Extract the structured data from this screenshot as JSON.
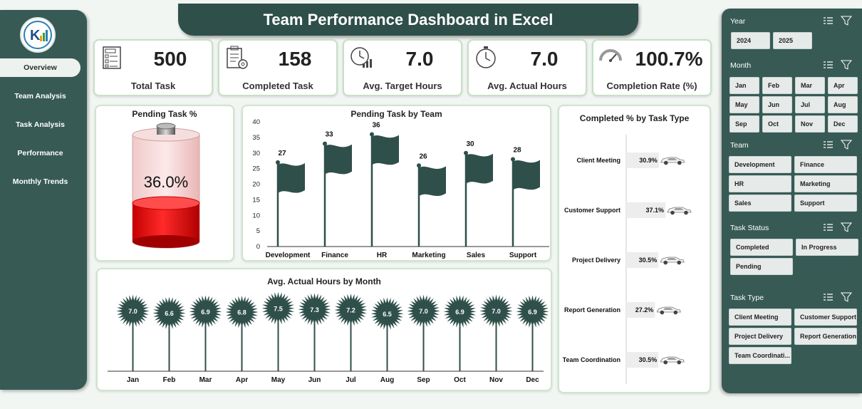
{
  "title": "Team Performance Dashboard in Excel",
  "logo": {
    "text": "K"
  },
  "nav": [
    {
      "label": "Overview",
      "active": true
    },
    {
      "label": "Team Analysis"
    },
    {
      "label": "Task  Analysis"
    },
    {
      "label": "Performance"
    },
    {
      "label": "Monthly Trends"
    }
  ],
  "kpis": [
    {
      "value": "500",
      "label": "Total Task",
      "icon": "task-list-icon"
    },
    {
      "value": "158",
      "label": "Completed Task",
      "icon": "clipboard-gear-icon"
    },
    {
      "value": "7.0",
      "label": "Avg. Target Hours",
      "icon": "clock-bars-icon"
    },
    {
      "value": "7.0",
      "label": "Avg. Actual Hours",
      "icon": "stopwatch-icon"
    },
    {
      "value": "100.7%",
      "label": "Completion Rate (%)",
      "icon": "gauge-icon"
    }
  ],
  "pending_panel": {
    "title": "Pending Task %",
    "value": "36.0%"
  },
  "team_panel": {
    "title": "Pending Task by Team"
  },
  "month_panel": {
    "title": "Avg. Actual Hours by Month"
  },
  "type_panel": {
    "title": "Completed % by Task Type"
  },
  "colors": {
    "dark": "#2f4f4a",
    "slicer": "#375a55",
    "red": "#e50000"
  },
  "chart_data": [
    {
      "type": "gauge",
      "title": "Pending Task %",
      "values": [
        36.0
      ],
      "unit": "%"
    },
    {
      "type": "bar",
      "title": "Pending Task by Team",
      "categories": [
        "Development",
        "Finance",
        "HR",
        "Marketing",
        "Sales",
        "Support"
      ],
      "values": [
        27,
        33,
        36,
        26,
        30,
        28
      ],
      "ylim": [
        0,
        40
      ],
      "yticks": [
        0,
        5,
        10,
        15,
        20,
        25,
        30,
        35,
        40
      ],
      "grid": false
    },
    {
      "type": "bar",
      "title": "Completed % by Task Type",
      "orientation": "horizontal",
      "categories": [
        "Client Meeting",
        "Customer Support",
        "Project Delivery",
        "Report Generation",
        "Team Coordination"
      ],
      "values": [
        30.9,
        37.1,
        30.5,
        27.2,
        30.5
      ],
      "labels": [
        "30.9%",
        "37.1%",
        "30.5%",
        "27.2%",
        "30.5%"
      ]
    },
    {
      "type": "line",
      "title": "Avg. Actual Hours by Month",
      "categories": [
        "Jan",
        "Feb",
        "Mar",
        "Apr",
        "May",
        "Jun",
        "Jul",
        "Aug",
        "Sep",
        "Oct",
        "Nov",
        "Dec"
      ],
      "values": [
        7.0,
        6.6,
        6.9,
        6.8,
        7.5,
        7.3,
        7.2,
        6.5,
        7.0,
        6.9,
        7.0,
        6.9
      ],
      "labels": [
        "7.0",
        "6.6",
        "6.9",
        "6.8",
        "7.5",
        "7.3",
        "7.2",
        "6.5",
        "7.0",
        "6.9",
        "7.0",
        "6.9"
      ]
    }
  ],
  "slicers": [
    {
      "title": "Year",
      "items": [
        "2024",
        "2025"
      ]
    },
    {
      "title": "Month",
      "items": [
        "Jan",
        "Feb",
        "Mar",
        "Apr",
        "May",
        "Jun",
        "Jul",
        "Aug",
        "Sep",
        "Oct",
        "Nov",
        "Dec"
      ]
    },
    {
      "title": "Team",
      "items": [
        "Development",
        "Finance",
        "HR",
        "Marketing",
        "Sales",
        "Support"
      ]
    },
    {
      "title": "Task Status",
      "items": [
        "Completed",
        "In Progress",
        "Pending"
      ]
    },
    {
      "title": "Task Type",
      "items": [
        "Client Meeting",
        "Customer Support",
        "Project Delivery",
        "Report Generation",
        "Team Coordinati..."
      ]
    }
  ]
}
